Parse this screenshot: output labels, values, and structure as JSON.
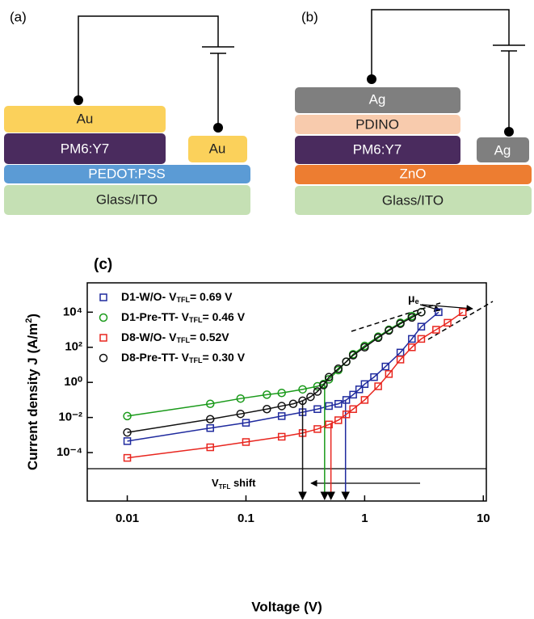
{
  "diagram": {
    "a": {
      "label": "(a)",
      "top": "Au",
      "active": "PM6:Y7",
      "htl": "PEDOT:PSS",
      "substrate": "Glass/ITO",
      "contact": "Au"
    },
    "b": {
      "label": "(b)",
      "top": "Ag",
      "etl_top": "PDINO",
      "active": "PM6:Y7",
      "etl": "ZnO",
      "substrate": "Glass/ITO",
      "contact": "Ag"
    }
  },
  "panel_c_label": "(c)",
  "chart_data": {
    "type": "scatter",
    "xlabel": "Voltage (V)",
    "ylabel": "Current density J (A/m",
    "ylabel_sup": "2",
    "ylabel_end": ")",
    "log_x": true,
    "log_y": true,
    "xlim": [
      0.0046,
      10.6
    ],
    "ylim": [
      1.74e-07,
      470000
    ],
    "xticks": [
      0.01,
      0.1,
      1,
      10
    ],
    "yticks": [
      {
        "value": 0.0001,
        "label": "10⁻⁴"
      },
      {
        "value": 0.01,
        "label": "10⁻²"
      },
      {
        "value": 1,
        "label": "10⁰"
      },
      {
        "value": 100,
        "label": "10²"
      },
      {
        "value": 10000,
        "label": "10⁴"
      }
    ],
    "mu_label": "μ",
    "mu_sub": "e",
    "shift_label": "V",
    "shift_sub": "TFL",
    "shift_end": " shift",
    "series": [
      {
        "name": "D1-W/O- V",
        "name_sub": "TFL",
        "name_end": "= 0.69 V",
        "color": "#1f2a9e",
        "marker": "square",
        "vtfl": 0.69,
        "x": [
          0.01,
          0.05,
          0.1,
          0.2,
          0.3,
          0.4,
          0.5,
          0.6,
          0.7,
          0.8,
          0.9,
          1.0,
          1.2,
          1.5,
          2,
          2.5,
          3,
          4.2
        ],
        "values": [
          0.00045,
          0.0025,
          0.005,
          0.012,
          0.02,
          0.03,
          0.045,
          0.06,
          0.1,
          0.2,
          0.4,
          0.8,
          2,
          8,
          50,
          300,
          1500,
          10000
        ]
      },
      {
        "name": "D1-Pre-TT- V",
        "name_sub": "TFL",
        "name_end": "= 0.46 V",
        "color": "#1a9a1a",
        "marker": "circle",
        "vtfl": 0.46,
        "x": [
          0.01,
          0.05,
          0.09,
          0.15,
          0.2,
          0.3,
          0.4,
          0.45,
          0.5,
          0.6,
          0.7,
          0.8,
          1.0,
          1.3,
          1.6,
          2,
          2.5,
          3
        ],
        "values": [
          0.012,
          0.06,
          0.12,
          0.2,
          0.25,
          0.4,
          0.6,
          0.8,
          1.5,
          5,
          15,
          40,
          120,
          400,
          1000,
          2500,
          6000,
          10000
        ]
      },
      {
        "name": "D8-W/O- V",
        "name_sub": "TFL",
        "name_end": "= 0.52V",
        "color": "#e8261f",
        "marker": "square",
        "vtfl": 0.52,
        "x": [
          0.01,
          0.05,
          0.1,
          0.2,
          0.3,
          0.4,
          0.5,
          0.6,
          0.7,
          0.8,
          1.0,
          1.3,
          1.6,
          2,
          2.5,
          3,
          4,
          5,
          6.7
        ],
        "values": [
          5e-05,
          0.0002,
          0.0004,
          0.0008,
          0.0013,
          0.0022,
          0.004,
          0.007,
          0.015,
          0.03,
          0.1,
          0.6,
          3,
          20,
          100,
          300,
          1000,
          2500,
          10000
        ]
      },
      {
        "name": "D8-Pre-TT- V",
        "name_sub": "TFL",
        "name_end": "= 0.30 V",
        "color": "#111111",
        "marker": "circle",
        "vtfl": 0.3,
        "x": [
          0.01,
          0.05,
          0.09,
          0.15,
          0.2,
          0.25,
          0.3,
          0.35,
          0.4,
          0.45,
          0.5,
          0.6,
          0.7,
          0.8,
          1.0,
          1.3,
          1.6,
          2,
          2.5,
          3
        ],
        "values": [
          0.0014,
          0.008,
          0.016,
          0.03,
          0.045,
          0.06,
          0.09,
          0.15,
          0.3,
          0.7,
          2,
          6,
          15,
          35,
          100,
          350,
          900,
          2200,
          5000,
          10000
        ]
      }
    ]
  }
}
